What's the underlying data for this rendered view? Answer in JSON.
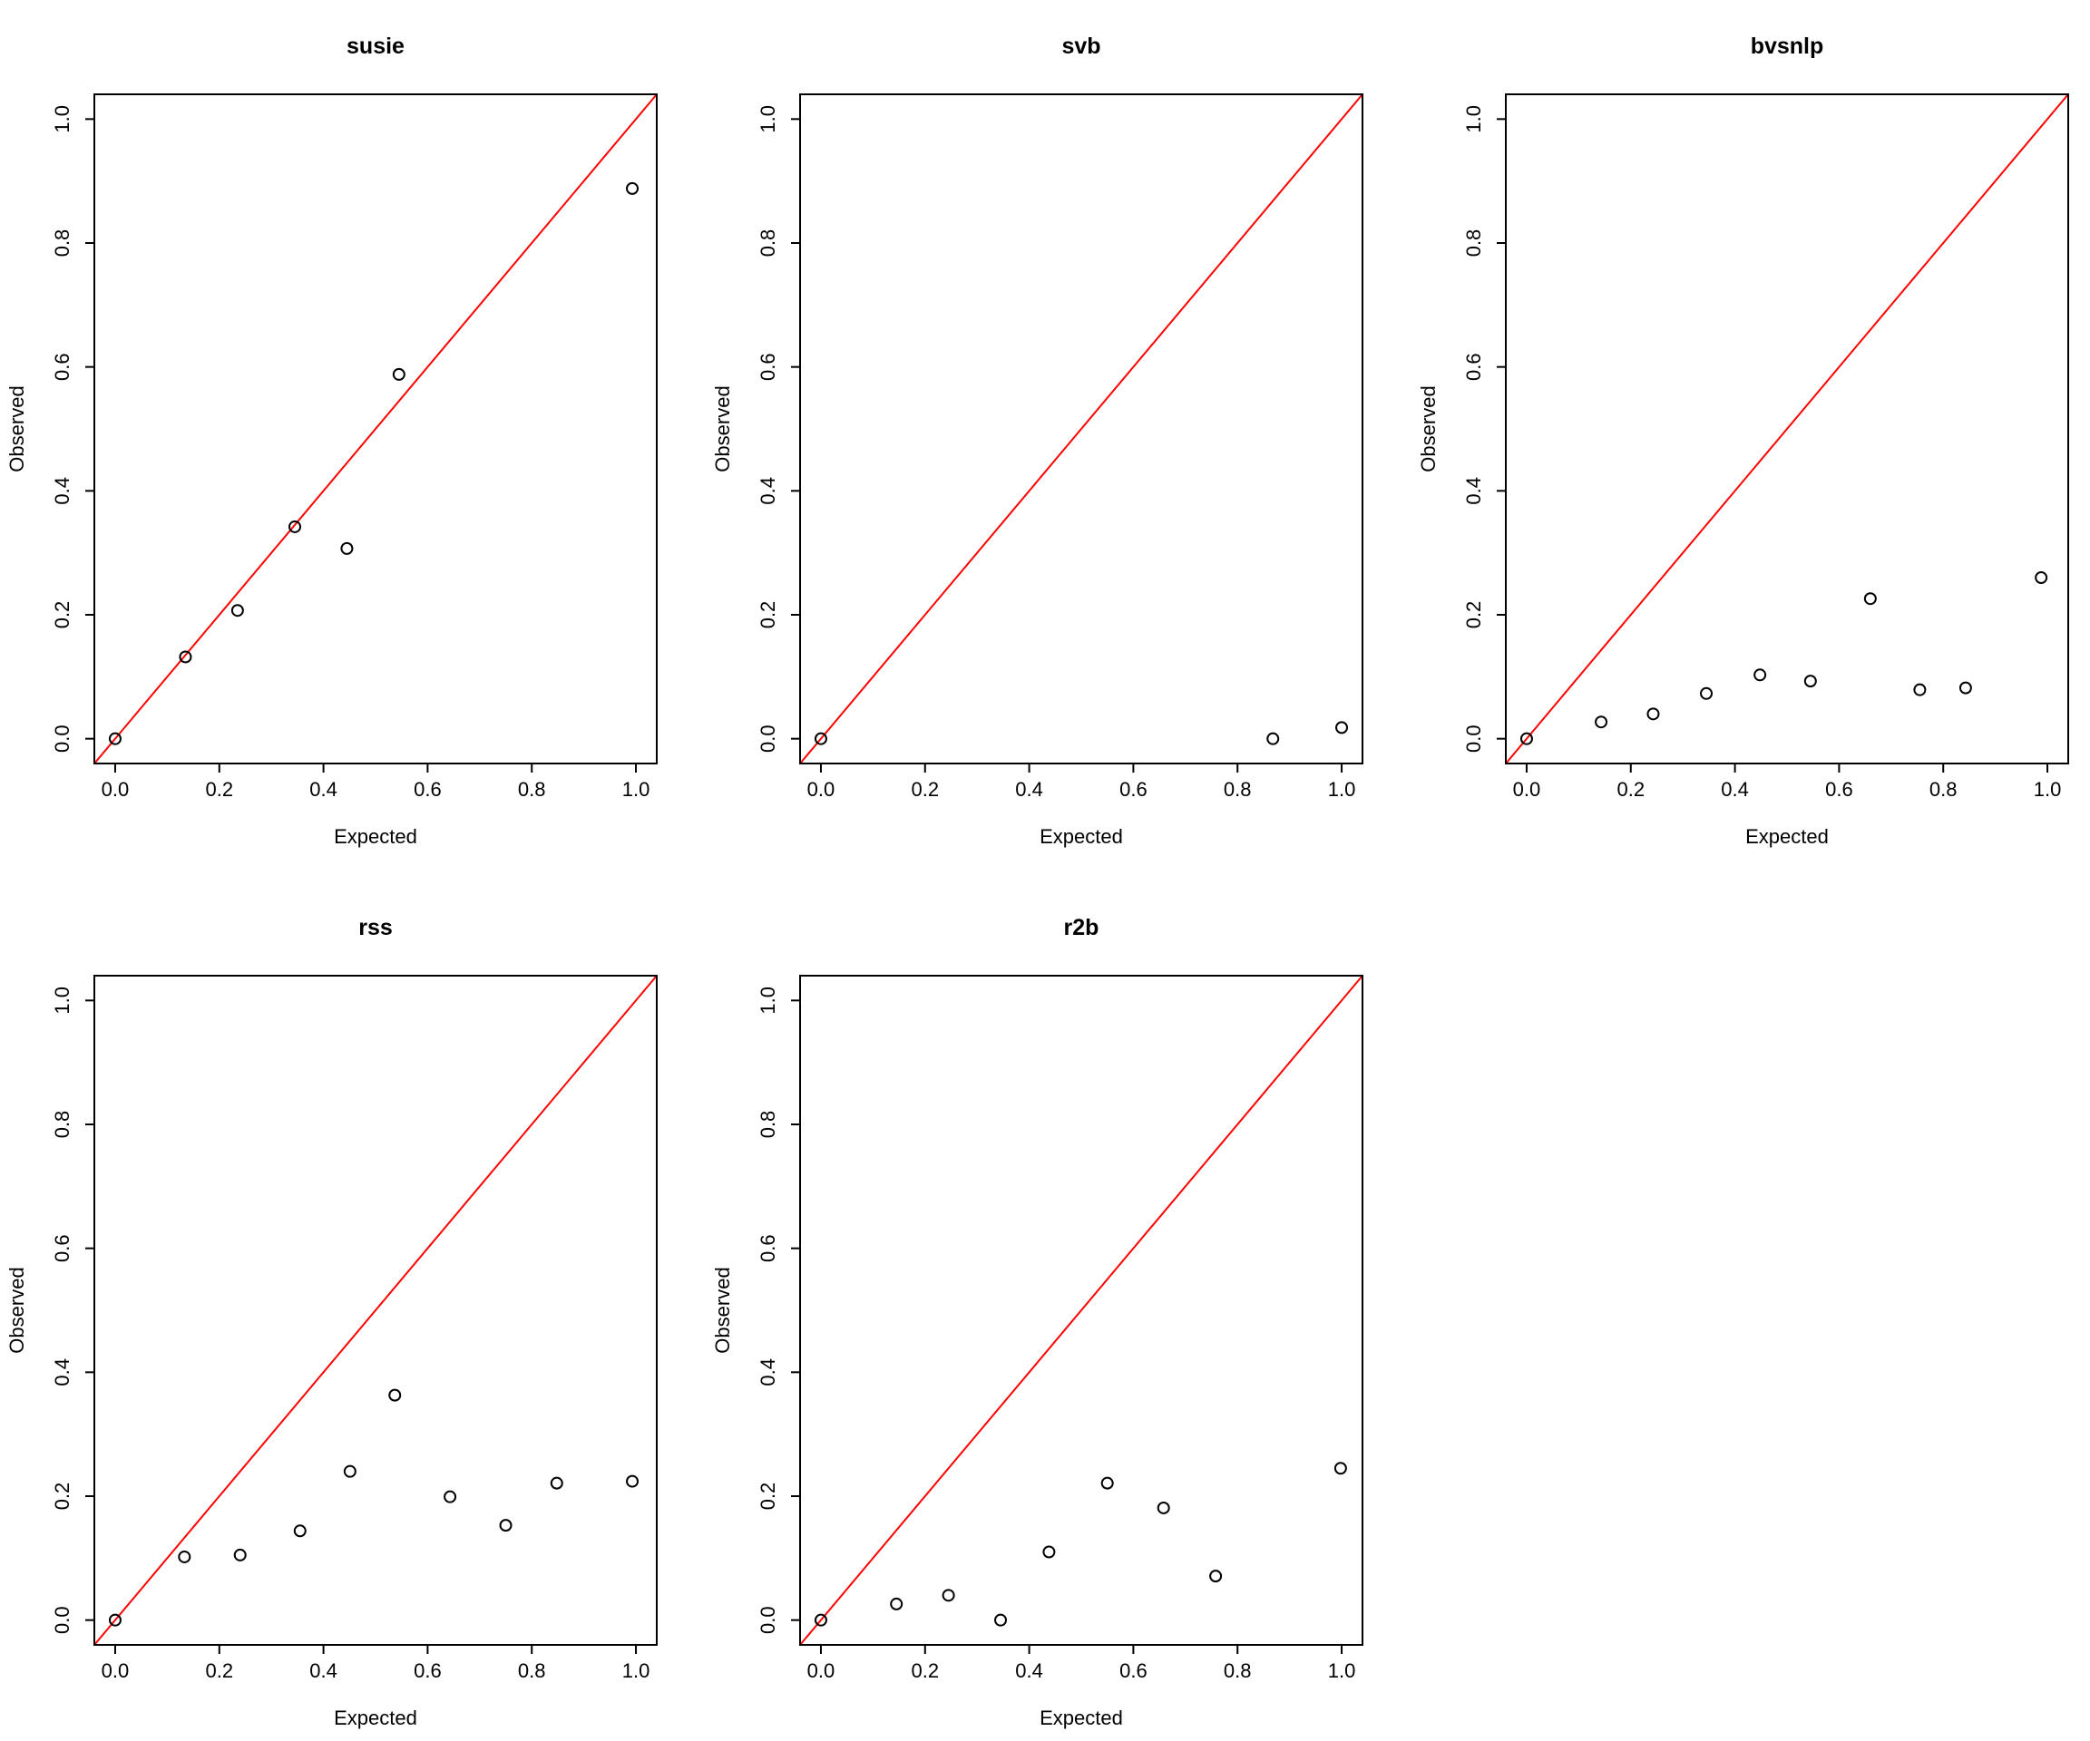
{
  "chart_data": [
    {
      "type": "scatter",
      "title": "susie",
      "xlabel": "Expected",
      "ylabel": "Observed",
      "xlim": [
        -0.04,
        1.04
      ],
      "ylim": [
        -0.04,
        1.04
      ],
      "xticks": [
        "0.0",
        "0.2",
        "0.4",
        "0.6",
        "0.8",
        "1.0"
      ],
      "yticks": [
        "0.0",
        "0.2",
        "0.4",
        "0.6",
        "0.8",
        "1.0"
      ],
      "reference_line": {
        "type": "identity",
        "color": "#ff0000"
      },
      "points": [
        {
          "x": 0.0,
          "y": 0.0
        },
        {
          "x": 0.135,
          "y": 0.132
        },
        {
          "x": 0.235,
          "y": 0.207
        },
        {
          "x": 0.345,
          "y": 0.342
        },
        {
          "x": 0.445,
          "y": 0.307
        },
        {
          "x": 0.545,
          "y": 0.588
        },
        {
          "x": 0.993,
          "y": 0.888
        }
      ]
    },
    {
      "type": "scatter",
      "title": "svb",
      "xlabel": "Expected",
      "ylabel": "Observed",
      "xlim": [
        -0.04,
        1.04
      ],
      "ylim": [
        -0.04,
        1.04
      ],
      "xticks": [
        "0.0",
        "0.2",
        "0.4",
        "0.6",
        "0.8",
        "1.0"
      ],
      "yticks": [
        "0.0",
        "0.2",
        "0.4",
        "0.6",
        "0.8",
        "1.0"
      ],
      "reference_line": {
        "type": "identity",
        "color": "#ff0000"
      },
      "points": [
        {
          "x": 0.0,
          "y": 0.0
        },
        {
          "x": 0.868,
          "y": 0.0
        },
        {
          "x": 1.0,
          "y": 0.018
        }
      ]
    },
    {
      "type": "scatter",
      "title": "bvsnlp",
      "xlabel": "Expected",
      "ylabel": "Observed",
      "xlim": [
        -0.04,
        1.04
      ],
      "ylim": [
        -0.04,
        1.04
      ],
      "xticks": [
        "0.0",
        "0.2",
        "0.4",
        "0.6",
        "0.8",
        "1.0"
      ],
      "yticks": [
        "0.0",
        "0.2",
        "0.4",
        "0.6",
        "0.8",
        "1.0"
      ],
      "reference_line": {
        "type": "identity",
        "color": "#ff0000"
      },
      "points": [
        {
          "x": 0.0,
          "y": 0.0
        },
        {
          "x": 0.143,
          "y": 0.027
        },
        {
          "x": 0.243,
          "y": 0.04
        },
        {
          "x": 0.345,
          "y": 0.073
        },
        {
          "x": 0.448,
          "y": 0.103
        },
        {
          "x": 0.545,
          "y": 0.093
        },
        {
          "x": 0.66,
          "y": 0.226
        },
        {
          "x": 0.755,
          "y": 0.079
        },
        {
          "x": 0.843,
          "y": 0.082
        },
        {
          "x": 0.988,
          "y": 0.26
        }
      ]
    },
    {
      "type": "scatter",
      "title": "rss",
      "xlabel": "Expected",
      "ylabel": "Observed",
      "xlim": [
        -0.04,
        1.04
      ],
      "ylim": [
        -0.04,
        1.04
      ],
      "xticks": [
        "0.0",
        "0.2",
        "0.4",
        "0.6",
        "0.8",
        "1.0"
      ],
      "yticks": [
        "0.0",
        "0.2",
        "0.4",
        "0.6",
        "0.8",
        "1.0"
      ],
      "reference_line": {
        "type": "identity",
        "color": "#ff0000"
      },
      "points": [
        {
          "x": 0.0,
          "y": 0.0
        },
        {
          "x": 0.133,
          "y": 0.102
        },
        {
          "x": 0.24,
          "y": 0.105
        },
        {
          "x": 0.355,
          "y": 0.144
        },
        {
          "x": 0.451,
          "y": 0.24
        },
        {
          "x": 0.537,
          "y": 0.363
        },
        {
          "x": 0.643,
          "y": 0.199
        },
        {
          "x": 0.75,
          "y": 0.153
        },
        {
          "x": 0.848,
          "y": 0.221
        },
        {
          "x": 0.993,
          "y": 0.224
        }
      ]
    },
    {
      "type": "scatter",
      "title": "r2b",
      "xlabel": "Expected",
      "ylabel": "Observed",
      "xlim": [
        -0.04,
        1.04
      ],
      "ylim": [
        -0.04,
        1.04
      ],
      "xticks": [
        "0.0",
        "0.2",
        "0.4",
        "0.6",
        "0.8",
        "1.0"
      ],
      "yticks": [
        "0.0",
        "0.2",
        "0.4",
        "0.6",
        "0.8",
        "1.0"
      ],
      "reference_line": {
        "type": "identity",
        "color": "#ff0000"
      },
      "points": [
        {
          "x": 0.0,
          "y": 0.0
        },
        {
          "x": 0.145,
          "y": 0.026
        },
        {
          "x": 0.245,
          "y": 0.04
        },
        {
          "x": 0.345,
          "y": 0.0
        },
        {
          "x": 0.438,
          "y": 0.11
        },
        {
          "x": 0.55,
          "y": 0.221
        },
        {
          "x": 0.658,
          "y": 0.181
        },
        {
          "x": 0.758,
          "y": 0.071
        },
        {
          "x": 0.998,
          "y": 0.245
        }
      ]
    }
  ]
}
